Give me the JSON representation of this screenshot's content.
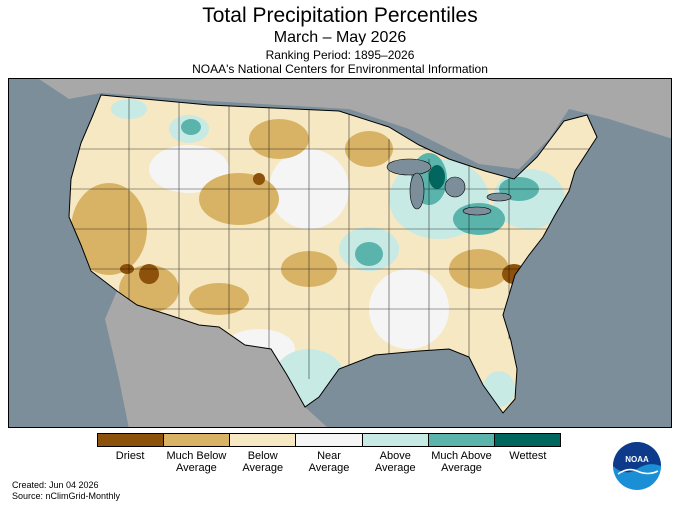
{
  "title": "Total Precipitation Percentiles",
  "period": "March – May 2026",
  "ranking": "Ranking Period: 1895–2026",
  "source_org": "NOAA's National Centers for Environmental Information",
  "legend": [
    {
      "label": "Driest",
      "color": "#8c510a"
    },
    {
      "label": "Much Below\nAverage",
      "color": "#d8b365"
    },
    {
      "label": "Below\nAverage",
      "color": "#f6e8c3"
    },
    {
      "label": "Near\nAverage",
      "color": "#f5f5f5"
    },
    {
      "label": "Above\nAverage",
      "color": "#c7eae5"
    },
    {
      "label": "Much Above\nAverage",
      "color": "#5ab4ac"
    },
    {
      "label": "Wettest",
      "color": "#01665e"
    }
  ],
  "footer": {
    "created": "Created: Jun 04 2026",
    "source": "Source: nClimGrid-Monthly"
  },
  "logo_text": "NOAA",
  "colors": {
    "ocean": "#7b8e9a",
    "neighbor_land": "#a8a8a8",
    "border": "#000000"
  }
}
